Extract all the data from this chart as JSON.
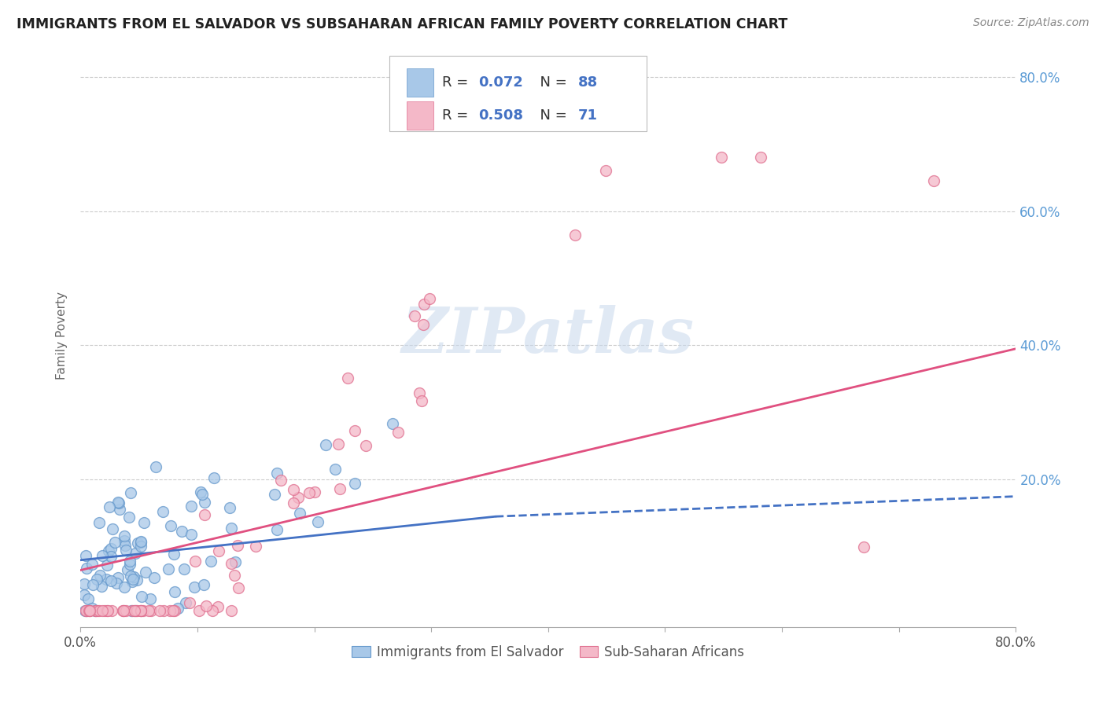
{
  "title": "IMMIGRANTS FROM EL SALVADOR VS SUBSAHARAN AFRICAN FAMILY POVERTY CORRELATION CHART",
  "source": "Source: ZipAtlas.com",
  "ylabel": "Family Poverty",
  "legend_label1": "Immigrants from El Salvador",
  "legend_label2": "Sub-Saharan Africans",
  "xlim": [
    0,
    0.8
  ],
  "ylim": [
    -0.02,
    0.85
  ],
  "yticks": [
    0.0,
    0.2,
    0.4,
    0.6,
    0.8
  ],
  "ytick_labels": [
    "",
    "20.0%",
    "40.0%",
    "60.0%",
    "80.0%"
  ],
  "color_blue": "#a8c8e8",
  "color_blue_edge": "#6699cc",
  "color_pink": "#f4b8c8",
  "color_pink_edge": "#e07090",
  "color_blue_line": "#4472c4",
  "color_pink_line": "#e05080",
  "watermark": "ZIPatlas",
  "blue_r": "0.072",
  "blue_n": "88",
  "pink_r": "0.508",
  "pink_n": "71",
  "legend_text_color": "#4472c4",
  "blue_line_x": [
    0.0,
    0.355,
    0.8
  ],
  "blue_line_y": [
    0.08,
    0.145,
    0.175
  ],
  "blue_line_solid_end": 0.355,
  "pink_line_x": [
    0.0,
    0.8
  ],
  "pink_line_y": [
    0.065,
    0.395
  ]
}
